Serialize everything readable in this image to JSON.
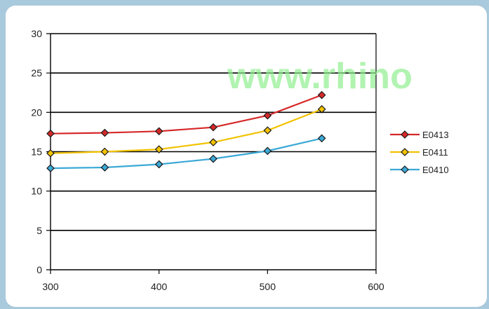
{
  "chart_data": {
    "type": "line",
    "title": "",
    "xlabel": "",
    "ylabel": "",
    "x": [
      300,
      350,
      400,
      450,
      500,
      550
    ],
    "xlim": [
      300,
      600
    ],
    "ylim": [
      0,
      30
    ],
    "xticks": [
      300,
      400,
      500,
      600
    ],
    "yticks": [
      0,
      5,
      10,
      15,
      20,
      25,
      30
    ],
    "grid": "horizontal",
    "legend_position": "right",
    "series": [
      {
        "name": "E0413",
        "color": "#d62828",
        "values": [
          17.3,
          17.4,
          17.6,
          18.1,
          19.6,
          22.2
        ]
      },
      {
        "name": "E0411",
        "color": "#f2c200",
        "values": [
          14.8,
          15.0,
          15.3,
          16.2,
          17.7,
          20.4
        ]
      },
      {
        "name": "E0410",
        "color": "#3ba9d6",
        "values": [
          12.9,
          13.0,
          13.4,
          14.1,
          15.1,
          16.7
        ]
      }
    ]
  },
  "watermark": {
    "text": "www.rhino"
  }
}
